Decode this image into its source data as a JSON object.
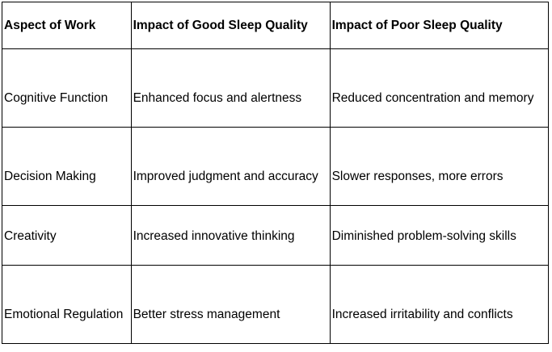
{
  "table": {
    "headers": [
      "Aspect of Work",
      "Impact of Good Sleep Quality",
      "Impact of Poor Sleep Quality"
    ],
    "rows": [
      [
        "Cognitive Function",
        "Enhanced focus and alertness",
        "Reduced concentration and memory"
      ],
      [
        "Decision Making",
        "Improved judgment and accuracy",
        "Slower responses, more errors"
      ],
      [
        "Creativity",
        "Increased innovative thinking",
        "Diminished problem-solving skills"
      ],
      [
        "Emotional Regulation",
        "Better stress management",
        "Increased irritability and conflicts"
      ]
    ]
  }
}
